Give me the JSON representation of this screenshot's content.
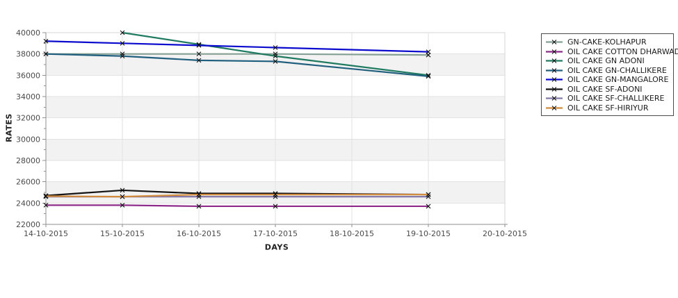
{
  "chart_data": {
    "type": "line",
    "title": "",
    "xlabel": "DAYS",
    "ylabel": "RATES",
    "x_categories": [
      "14-10-2015",
      "15-10-2015",
      "16-10-2015",
      "17-10-2015",
      "18-10-2015",
      "19-10-2015",
      "20-10-2015"
    ],
    "ylim": [
      22000,
      40000
    ],
    "y_tick_step": 2000,
    "y_minor_tick_step": 1000,
    "grid": true,
    "band_fill_color": "#f2f2f2",
    "legend_position": "right",
    "marker_style": "x",
    "marker_color": "#111111",
    "axis": {
      "line_color": "#8f8f8f",
      "border_color": "#d6d6d6",
      "grid_color": "#e2e2e2",
      "tick_label_color": "#4a4a4a",
      "title_color": "#1f1f1f"
    },
    "legend": {
      "border_color": "#4a4a4a",
      "background": "#ffffff",
      "text_color": "#1c1c1c"
    },
    "series": [
      {
        "name": "GN-CAKE-KOLHAPUR",
        "color": "#85a094",
        "points": [
          [
            "14-10-2015",
            38000
          ],
          [
            "15-10-2015",
            38000
          ],
          [
            "16-10-2015",
            38000
          ],
          [
            "17-10-2015",
            38000
          ],
          [
            "19-10-2015",
            37900
          ]
        ]
      },
      {
        "name": "OIL CAKE COTTON DHARWAD",
        "color": "#8e2a8a",
        "points": [
          [
            "14-10-2015",
            23800
          ],
          [
            "15-10-2015",
            23800
          ],
          [
            "16-10-2015",
            23700
          ],
          [
            "17-10-2015",
            23700
          ],
          [
            "19-10-2015",
            23700
          ]
        ]
      },
      {
        "name": "OIL CAKE GN ADONI",
        "color": "#1f7a60",
        "points": [
          [
            "15-10-2015",
            40000
          ],
          [
            "16-10-2015",
            38900
          ],
          [
            "17-10-2015",
            37800
          ],
          [
            "19-10-2015",
            36000
          ]
        ]
      },
      {
        "name": "OIL CAKE GN-CHALLIKERE",
        "color": "#205f7d",
        "points": [
          [
            "14-10-2015",
            38000
          ],
          [
            "15-10-2015",
            37800
          ],
          [
            "16-10-2015",
            37400
          ],
          [
            "17-10-2015",
            37300
          ],
          [
            "19-10-2015",
            35900
          ]
        ]
      },
      {
        "name": "OIL CAKE GN-MANGALORE",
        "color": "#0b0bcd",
        "points": [
          [
            "14-10-2015",
            39200
          ],
          [
            "15-10-2015",
            39000
          ],
          [
            "16-10-2015",
            38800
          ],
          [
            "17-10-2015",
            38600
          ],
          [
            "19-10-2015",
            38200
          ]
        ]
      },
      {
        "name": "OIL CAKE SF-ADONI",
        "color": "#141414",
        "points": [
          [
            "14-10-2015",
            24700
          ],
          [
            "15-10-2015",
            25200
          ],
          [
            "16-10-2015",
            24900
          ],
          [
            "17-10-2015",
            24900
          ],
          [
            "19-10-2015",
            24800
          ]
        ]
      },
      {
        "name": "OIL CAKE SF-CHALLIKERE",
        "color": "#8679a8",
        "points": [
          [
            "14-10-2015",
            24600
          ],
          [
            "15-10-2015",
            24600
          ],
          [
            "16-10-2015",
            24600
          ],
          [
            "17-10-2015",
            24600
          ],
          [
            "19-10-2015",
            24600
          ]
        ]
      },
      {
        "name": "OIL CAKE SF-HIRIYUR",
        "color": "#d28b3a",
        "points": [
          [
            "14-10-2015",
            24650
          ],
          [
            "15-10-2015",
            24600
          ],
          [
            "16-10-2015",
            24800
          ],
          [
            "17-10-2015",
            24800
          ],
          [
            "19-10-2015",
            24800
          ]
        ]
      }
    ]
  }
}
